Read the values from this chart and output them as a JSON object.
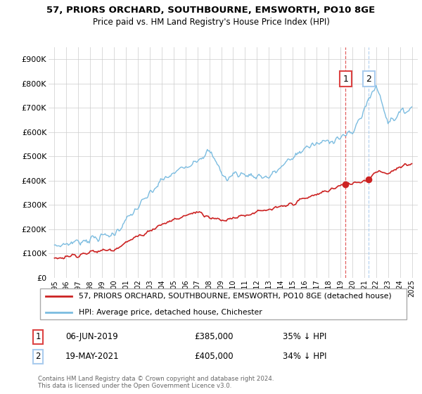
{
  "title": "57, PRIORS ORCHARD, SOUTHBOURNE, EMSWORTH, PO10 8GE",
  "subtitle": "Price paid vs. HM Land Registry's House Price Index (HPI)",
  "legend_line1": "57, PRIORS ORCHARD, SOUTHBOURNE, EMSWORTH, PO10 8GE (detached house)",
  "legend_line2": "HPI: Average price, detached house, Chichester",
  "footnote": "Contains HM Land Registry data © Crown copyright and database right 2024.\nThis data is licensed under the Open Government Licence v3.0.",
  "sale1_date": "06-JUN-2019",
  "sale1_price": "£385,000",
  "sale1_hpi": "35% ↓ HPI",
  "sale2_date": "19-MAY-2021",
  "sale2_price": "£405,000",
  "sale2_hpi": "34% ↓ HPI",
  "hpi_color": "#7bbce0",
  "price_color": "#cc2222",
  "sale1_x": 2019.43,
  "sale1_y": 385000,
  "sale2_x": 2021.38,
  "sale2_y": 405000,
  "xlim_left": 1994.5,
  "xlim_right": 2025.5,
  "ylim_bottom": 0,
  "ylim_top": 950000,
  "yticks": [
    0,
    100000,
    200000,
    300000,
    400000,
    500000,
    600000,
    700000,
    800000,
    900000
  ],
  "ytick_labels": [
    "£0",
    "£100K",
    "£200K",
    "£300K",
    "£400K",
    "£500K",
    "£600K",
    "£700K",
    "£800K",
    "£900K"
  ],
  "xticks": [
    1995,
    1996,
    1997,
    1998,
    1999,
    2000,
    2001,
    2002,
    2003,
    2004,
    2005,
    2006,
    2007,
    2008,
    2009,
    2010,
    2011,
    2012,
    2013,
    2014,
    2015,
    2016,
    2017,
    2018,
    2019,
    2020,
    2021,
    2022,
    2023,
    2024,
    2025
  ],
  "background_color": "#ffffff",
  "grid_color": "#cccccc",
  "vline1_color": "#dd4444",
  "vline2_color": "#aaccee"
}
